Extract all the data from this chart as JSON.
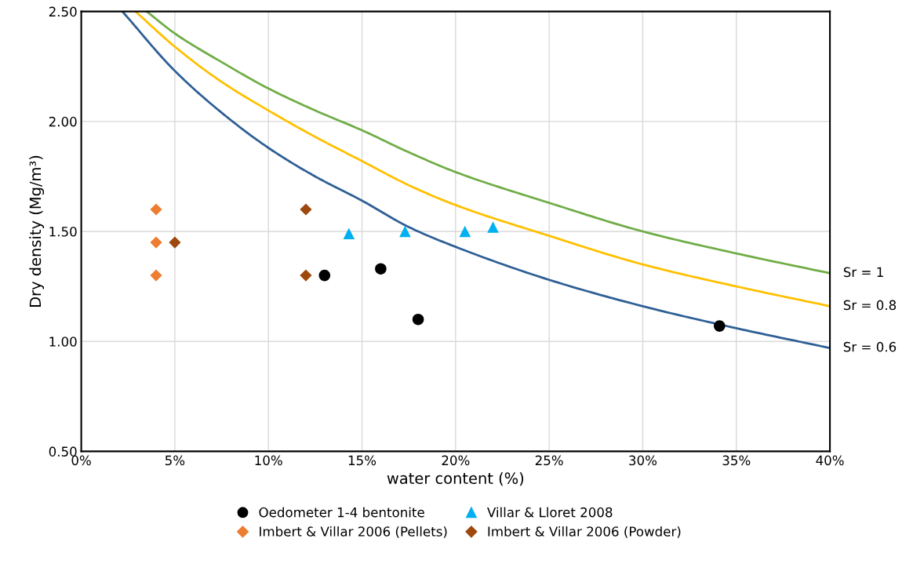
{
  "chart_data": {
    "type": "scatter",
    "xlabel": "water content (%)",
    "ylabel": "Dry density (Mg/m³)",
    "xlim": [
      0,
      40
    ],
    "ylim": [
      0.5,
      2.5
    ],
    "xticks": [
      {
        "value": 0,
        "label": "0%"
      },
      {
        "value": 5,
        "label": "5%"
      },
      {
        "value": 10,
        "label": "10%"
      },
      {
        "value": 15,
        "label": "15%"
      },
      {
        "value": 20,
        "label": "20%"
      },
      {
        "value": 25,
        "label": "25%"
      },
      {
        "value": 30,
        "label": "30%"
      },
      {
        "value": 35,
        "label": "35%"
      },
      {
        "value": 40,
        "label": "40%"
      }
    ],
    "yticks": [
      {
        "value": 0.5,
        "label": "0.50"
      },
      {
        "value": 1.0,
        "label": "1.00"
      },
      {
        "value": 1.5,
        "label": "1.50"
      },
      {
        "value": 2.0,
        "label": "2.00"
      },
      {
        "value": 2.5,
        "label": "2.50"
      }
    ],
    "grid": true,
    "legend": "bottom",
    "series": [
      {
        "type": "line",
        "name": "Sr = 1",
        "color": "#70ad47",
        "marker": "none",
        "x": [
          3.5,
          5,
          7.5,
          10,
          12.5,
          15,
          17.5,
          20,
          25,
          30,
          35,
          40
        ],
        "values": [
          2.5,
          2.4,
          2.27,
          2.15,
          2.05,
          1.96,
          1.86,
          1.77,
          1.63,
          1.5,
          1.4,
          1.31
        ]
      },
      {
        "type": "line",
        "name": "Sr = 0.8",
        "color": "#ffc000",
        "marker": "none",
        "x": [
          2.9,
          5,
          7.5,
          10,
          12.5,
          15,
          17.5,
          20,
          25,
          30,
          35,
          40
        ],
        "values": [
          2.5,
          2.34,
          2.18,
          2.05,
          1.93,
          1.82,
          1.71,
          1.62,
          1.48,
          1.35,
          1.25,
          1.16
        ]
      },
      {
        "type": "line",
        "name": "Sr = 0.6",
        "color": "#2e5f95",
        "marker": "none",
        "x": [
          2.2,
          5,
          7.5,
          10,
          12.5,
          15,
          17.5,
          20,
          25,
          30,
          35,
          40
        ],
        "values": [
          2.5,
          2.23,
          2.04,
          1.88,
          1.75,
          1.64,
          1.52,
          1.43,
          1.28,
          1.16,
          1.06,
          0.97
        ]
      },
      {
        "name": "Oedometer 1-4 bentonite",
        "color": "#000000",
        "marker": "circle",
        "x": [
          13,
          16,
          18,
          34.1
        ],
        "values": [
          1.3,
          1.33,
          1.1,
          1.07
        ]
      },
      {
        "name": "Villar & Lloret 2008",
        "color": "#00b0f0",
        "marker": "triangle",
        "x": [
          14.3,
          17.3,
          20.5,
          22
        ],
        "values": [
          1.49,
          1.5,
          1.5,
          1.52
        ]
      },
      {
        "name": "Imbert & Villar 2006 (Pellets)",
        "color": "#ed7d31",
        "marker": "diamond",
        "x": [
          4,
          4,
          4
        ],
        "values": [
          1.6,
          1.45,
          1.3
        ]
      },
      {
        "name": "Imbert & Villar 2006 (Powder)",
        "color": "#9e480e",
        "marker": "diamond",
        "x": [
          5,
          12,
          12
        ],
        "values": [
          1.45,
          1.6,
          1.3
        ]
      }
    ]
  }
}
